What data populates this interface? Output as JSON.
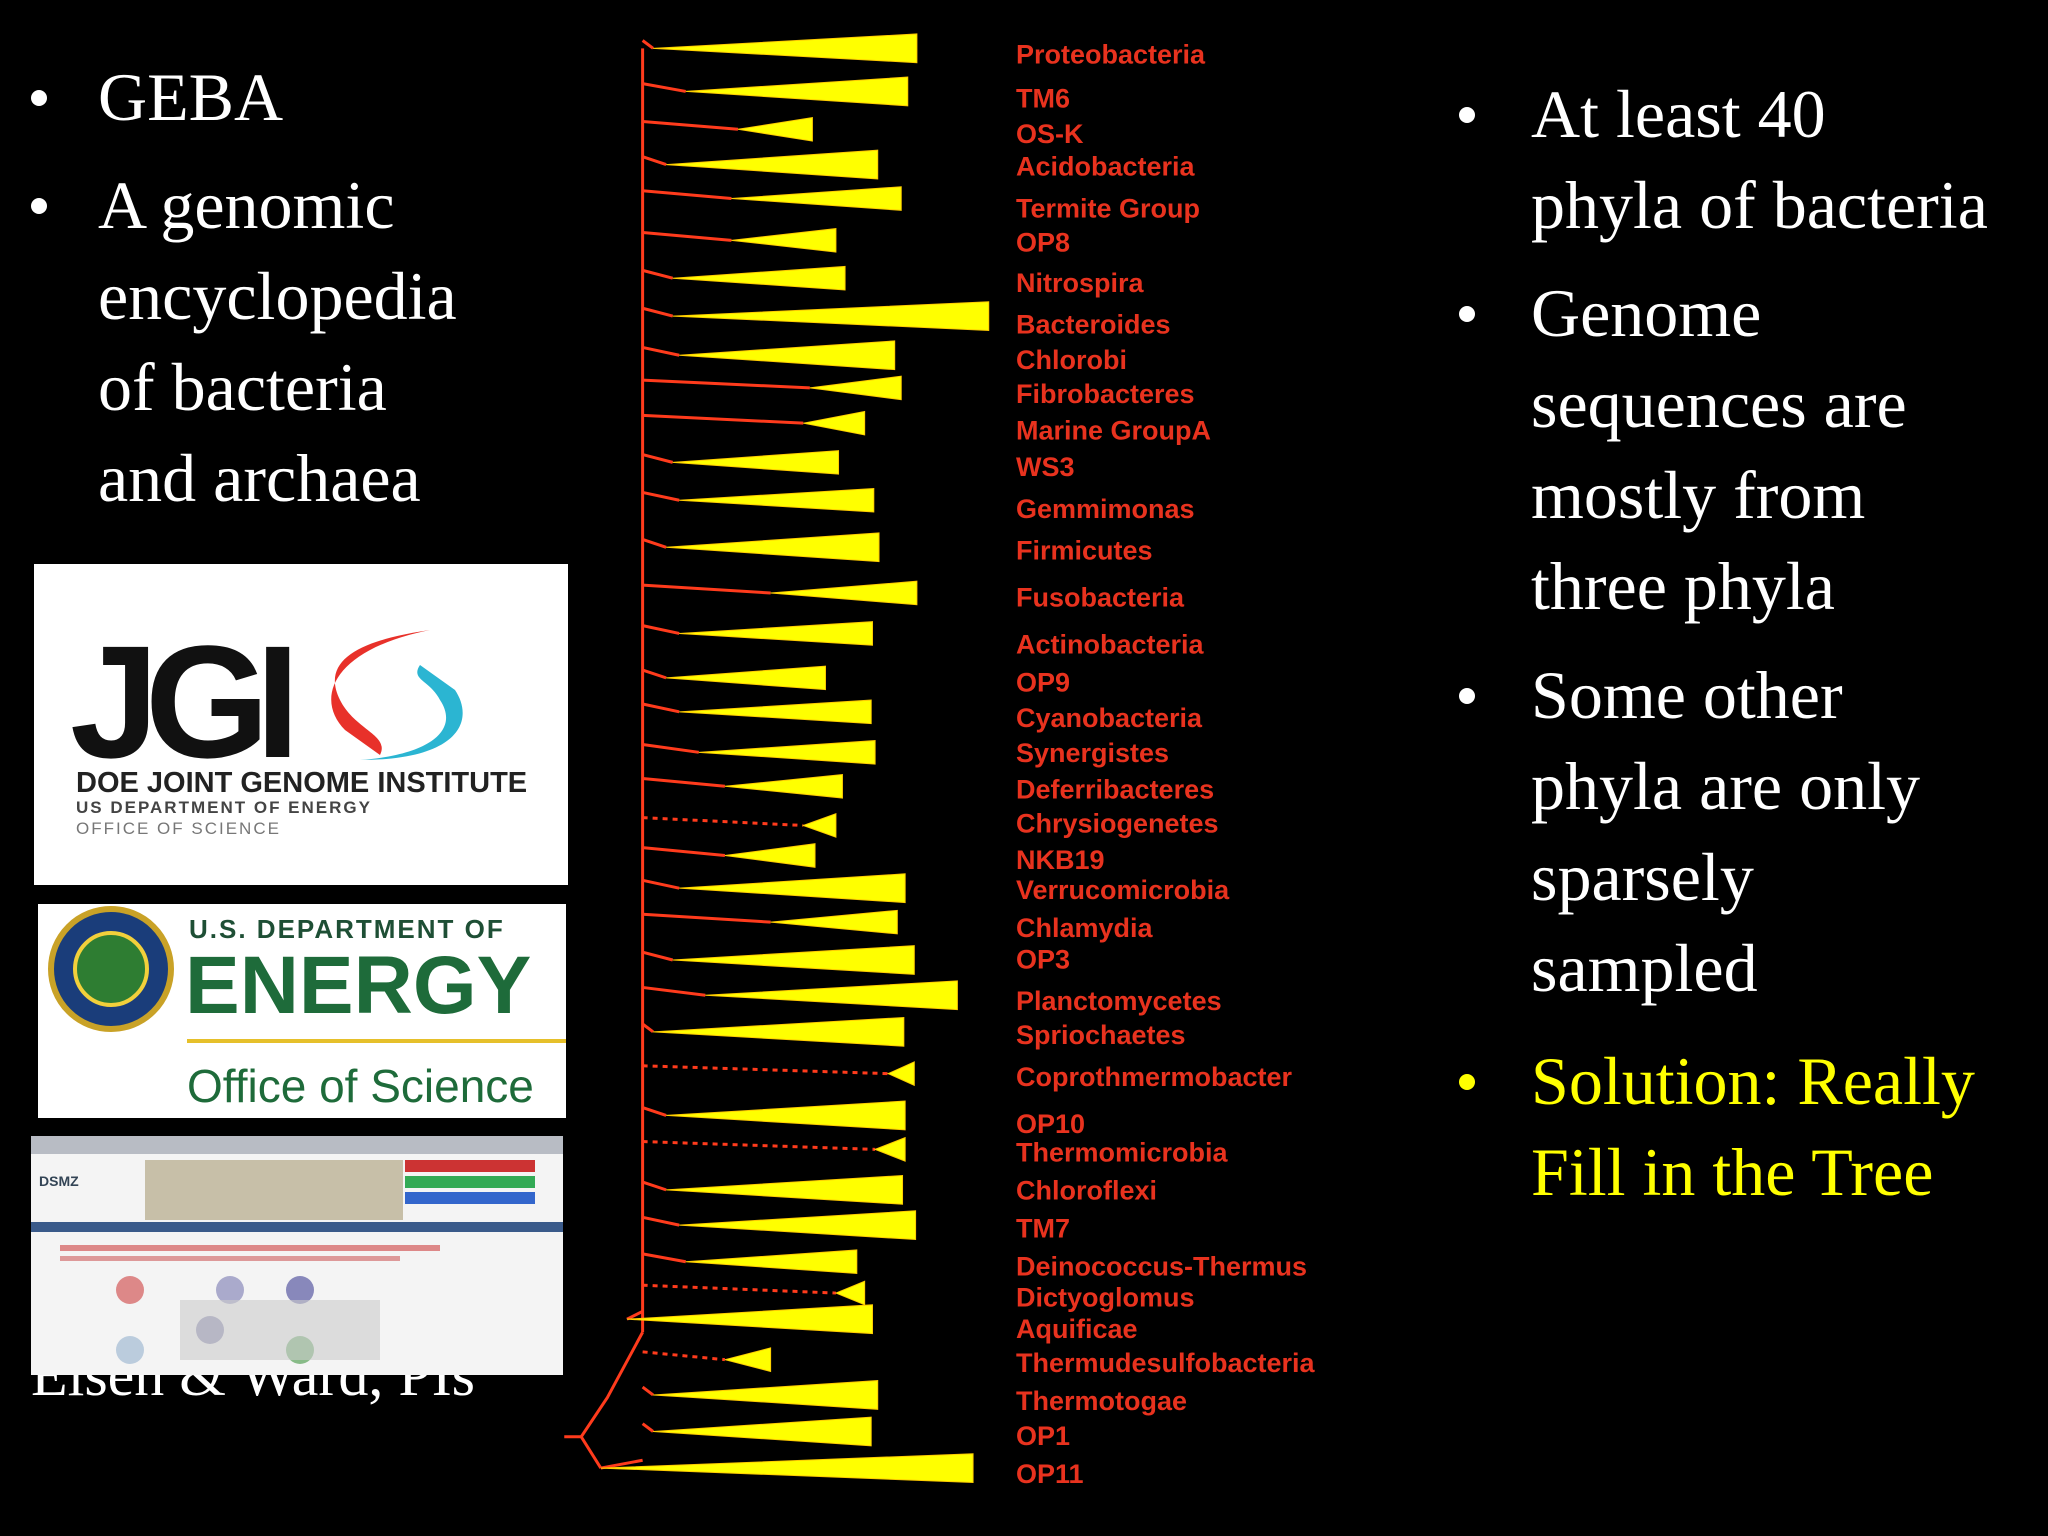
{
  "left_bullets": [
    {
      "lines": [
        "GEBA"
      ]
    },
    {
      "lines": [
        "A genomic",
        "encyclopedia",
        "of bacteria",
        "and archaea"
      ]
    }
  ],
  "logos": {
    "jgi": {
      "mark": "JGI",
      "name": "DOE JOINT GENOME INSTITUTE",
      "line2": "US DEPARTMENT OF ENERGY",
      "line3": "OFFICE OF SCIENCE"
    },
    "doe": {
      "top": "U.S. DEPARTMENT OF",
      "big": "ENERGY",
      "bottom": "Office of Science"
    },
    "dsmz": {
      "mark": "DSMZ"
    }
  },
  "credit": "Eisen & Ward, PIs",
  "tree": {
    "labels": [
      "Proteobacteria",
      "TM6",
      "OS-K",
      "Acidobacteria",
      "Termite Group",
      "OP8",
      "Nitrospira",
      "Bacteroides",
      "Chlorobi",
      "Fibrobacteres",
      "Marine GroupA",
      "WS3",
      "Gemmimonas",
      "Firmicutes",
      "Fusobacteria",
      "Actinobacteria",
      "OP9",
      "Cyanobacteria",
      "Synergistes",
      "Deferribacteres",
      "Chrysiogenetes",
      "NKB19",
      "Verrucomicrobia",
      "Chlamydia",
      "OP3",
      "Planctomycetes",
      "Spriochaetes",
      "Coprothmermobacter",
      "OP10",
      "Thermomicrobia",
      "Chloroflexi",
      "TM7",
      "Deinococcus-Thermus",
      "Dictyoglomus",
      "Aquificae",
      "Thermudesulfobacteria",
      "Thermotogae",
      "OP1",
      "OP11"
    ]
  },
  "right_bullets": [
    {
      "lines": [
        "At least 40",
        "phyla of bacteria"
      ],
      "color": "#ffffff"
    },
    {
      "lines": [
        "Genome",
        "sequences are",
        "mostly from",
        "three phyla"
      ],
      "color": "#ffffff"
    },
    {
      "lines": [
        "Some other",
        "phyla are only",
        "sparsely",
        "sampled"
      ],
      "color": "#ffffff"
    },
    {
      "lines": [
        "Solution: Really",
        "Fill in the Tree"
      ],
      "color": "#ffff00"
    }
  ]
}
